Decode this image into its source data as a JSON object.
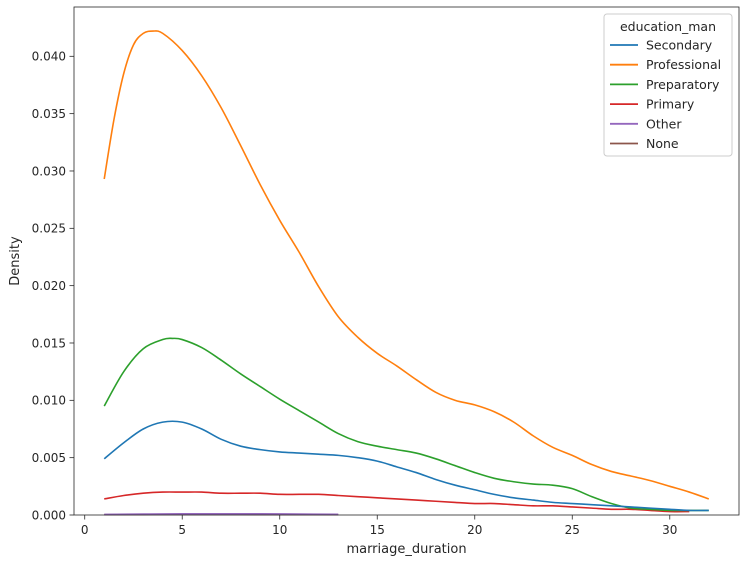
{
  "chart_data": {
    "type": "line",
    "title": "",
    "xlabel": "marriage_duration",
    "ylabel": "Density",
    "xlim": [
      -0.55,
      33.55
    ],
    "ylim": [
      0,
      0.0443
    ],
    "xticks": [
      0,
      5,
      10,
      15,
      20,
      25,
      30
    ],
    "xtick_labels": [
      "0",
      "5",
      "10",
      "15",
      "20",
      "25",
      "30"
    ],
    "yticks": [
      0,
      0.005,
      0.01,
      0.015,
      0.02,
      0.025,
      0.03,
      0.035,
      0.04
    ],
    "ytick_labels": [
      "0.000",
      "0.005",
      "0.010",
      "0.015",
      "0.020",
      "0.025",
      "0.030",
      "0.035",
      "0.040"
    ],
    "grid": false,
    "legend": {
      "title": "education_man",
      "placement": "top-right"
    },
    "series": [
      {
        "name": "Secondary",
        "color": "#1f77b4",
        "x": [
          1,
          2,
          3,
          4,
          5,
          6,
          7,
          8,
          9,
          10,
          11,
          12,
          13,
          14,
          15,
          16,
          17,
          18,
          19,
          20,
          21,
          22,
          23,
          24,
          25,
          26,
          27,
          28,
          29,
          30,
          31,
          32
        ],
        "y": [
          0.0049,
          0.0063,
          0.0075,
          0.0081,
          0.0081,
          0.0075,
          0.0066,
          0.006,
          0.0057,
          0.0055,
          0.0054,
          0.0053,
          0.0052,
          0.005,
          0.0047,
          0.0042,
          0.0037,
          0.0031,
          0.0026,
          0.0022,
          0.0018,
          0.0015,
          0.0013,
          0.0011,
          0.001,
          0.0009,
          0.0008,
          0.0007,
          0.0006,
          0.0005,
          0.0004,
          0.0004
        ]
      },
      {
        "name": "Professional",
        "color": "#ff7f0e",
        "x": [
          1,
          1.5,
          2,
          2.5,
          3,
          3.5,
          4,
          5,
          6,
          7,
          8,
          9,
          10,
          11,
          12,
          13,
          14,
          15,
          16,
          17,
          18,
          19,
          20,
          21,
          22,
          23,
          24,
          25,
          26,
          27,
          28,
          29,
          30,
          31,
          32
        ],
        "y": [
          0.0293,
          0.0345,
          0.0385,
          0.041,
          0.042,
          0.0422,
          0.042,
          0.0405,
          0.0383,
          0.0355,
          0.0322,
          0.0288,
          0.0257,
          0.0229,
          0.0199,
          0.0173,
          0.0155,
          0.0141,
          0.013,
          0.0118,
          0.0107,
          0.01,
          0.0096,
          0.009,
          0.0081,
          0.0069,
          0.0059,
          0.0052,
          0.0044,
          0.0038,
          0.0034,
          0.003,
          0.0025,
          0.002,
          0.0014
        ]
      },
      {
        "name": "Preparatory",
        "color": "#2ca02c",
        "x": [
          1,
          2,
          3,
          4,
          4.5,
          5,
          6,
          7,
          8,
          9,
          10,
          11,
          12,
          13,
          14,
          15,
          16,
          17,
          18,
          19,
          20,
          21,
          22,
          23,
          24,
          25,
          26,
          27,
          28,
          29,
          30,
          31,
          32
        ],
        "y": [
          0.0095,
          0.0125,
          0.0145,
          0.0153,
          0.0154,
          0.0153,
          0.0146,
          0.0135,
          0.0123,
          0.0112,
          0.0101,
          0.0091,
          0.0081,
          0.0071,
          0.0064,
          0.006,
          0.0057,
          0.0054,
          0.0049,
          0.0043,
          0.0037,
          0.0032,
          0.0029,
          0.0027,
          0.0026,
          0.0023,
          0.0016,
          0.001,
          0.0006,
          0.0005,
          0.0004,
          0.0004,
          0.0004
        ]
      },
      {
        "name": "Primary",
        "color": "#d62728",
        "x": [
          1,
          2,
          3,
          4,
          5,
          6,
          7,
          8,
          9,
          10,
          11,
          12,
          13,
          14,
          15,
          16,
          17,
          18,
          19,
          20,
          21,
          22,
          23,
          24,
          25,
          26,
          27,
          28,
          29,
          30,
          31
        ],
        "y": [
          0.0014,
          0.0017,
          0.0019,
          0.002,
          0.002,
          0.002,
          0.0019,
          0.0019,
          0.0019,
          0.0018,
          0.0018,
          0.0018,
          0.0017,
          0.0016,
          0.0015,
          0.0014,
          0.0013,
          0.0012,
          0.0011,
          0.001,
          0.001,
          0.0009,
          0.0008,
          0.0008,
          0.0007,
          0.0006,
          0.0005,
          0.0005,
          0.0004,
          0.0003,
          0.0003
        ]
      },
      {
        "name": "Other",
        "color": "#9467bd",
        "x": [
          1,
          3,
          5,
          7,
          9,
          11,
          13
        ],
        "y": [
          5e-05,
          8e-05,
          0.0001,
          0.0001,
          0.0001,
          8e-05,
          6e-05
        ]
      },
      {
        "name": "None",
        "color": "#8c564b",
        "x": [
          1,
          3,
          5,
          7,
          9,
          11,
          13
        ],
        "y": [
          3e-05,
          4e-05,
          5e-05,
          5e-05,
          4e-05,
          4e-05,
          3e-05
        ]
      }
    ]
  }
}
